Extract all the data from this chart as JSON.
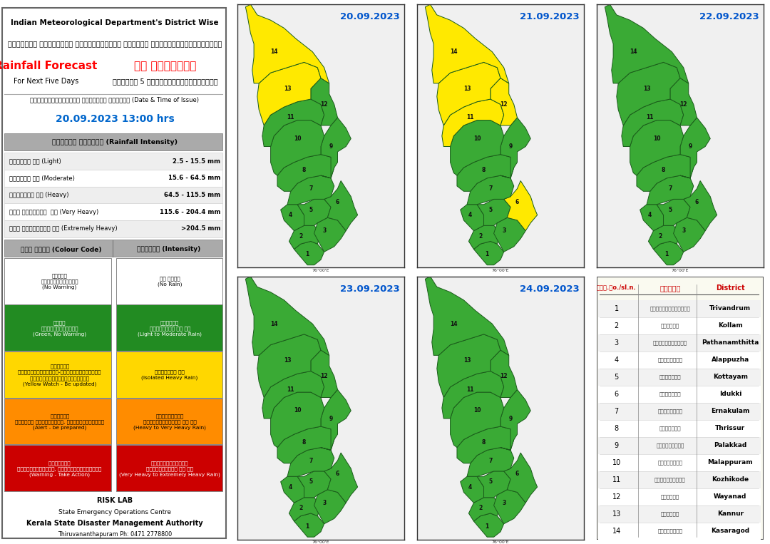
{
  "title_en": "Indian Meteorological Department's District Wise",
  "title_ml": "ഇന്ത്യൻ കാലാവസ്ഥ വകുപ്പിന്റെ ജില്ലാ അടിസ്ഥാനത്തിലുള്ള",
  "rainfall_en": "Rainfall Forecast",
  "rainfall_ml": "മഴ പ്രവചനം",
  "days_en": "For Next Five Days",
  "days_ml": "അടുത്ത 5 ദിവസത്തേക്കുള്ളത്",
  "issue_label": "പുറപ്പെടുവിച്ച ദിവസവും സമയവും (Date & Time of Issue)",
  "issue_date": "20.09.2023 13:00 hrs",
  "intensity_header_ml": "മഴയുടെ തീവ്രത (Rainfall Intensity)",
  "intensity_rows": [
    [
      "ചാറ്റൽ മഴ (Light)",
      "2.5 - 15.5 mm"
    ],
    [
      "മിതമായ മഴ (Moderate)",
      "15.6 - 64.5 mm"
    ],
    [
      "ശക്തമായ മഴ (Heavy)",
      "64.5 - 115.5 mm"
    ],
    [
      "അതി ശക്തമായ  മഴ (Very Heavy)",
      "115.6 - 204.4 mm"
    ],
    [
      "അതി തീവ്രമായ മഴ (Extremely Heavy)",
      ">204.5 mm"
    ]
  ],
  "colour_code_ml": "കളർ കോഡ് (Colour Code)",
  "intensity_col_ml": "തീവ്രത (Intensity)",
  "colour_rows": [
    [
      "white",
      "വെള്ള\nമുന്നറിയില്ല\n(No Warning)",
      "മഴ ഇല്ല\n(No Rain)"
    ],
    [
      "#228B22",
      "പച്ച\nമുന്നറിയില്ല\n(Green, No Warning)",
      "നേരിതോ\nമിതമായതോ ആയ മഴ\n(Light to Moderate Rain)"
    ],
    [
      "#FFD700",
      "മഞ്ഞള്‍\nനിരീക്ഷിക്കുക-മുന്നറിയിപ്‍പ്\nപുതുക്കികാണിച്‍ചുക്ക\n(Yellow Watch - Be updated)",
      "ശക്തമായ മഴ\n(Isolated Heavy Rain)"
    ],
    [
      "#FF8C00",
      "ഓറഞ്ച്‍\nജാഗ്രത പാലിക്കുക, കരുതിരിക്കുക\n(Alert - be prepared)",
      "ശക്തമായതോ\nഅതിശക്തമായതോ ആയ മഴ\n(Heavy to Very Heavy Rain)"
    ],
    [
      "#CC0000",
      "ചുവപ്പ്‍\nകണ്ണറിയിച്‍ച്, പ്രവർത്തിക്കുക\n(Warning - Take Action)",
      "അതിശക്തമായതോ\nതീവ്രമായതോ ആയ മഴ\n(Very Heavy to Extremely Heavy Rain)"
    ]
  ],
  "risk_lab": "RISK LAB",
  "ksoc": "State Emergency Operations Centre",
  "ksda": "Kerala State Disaster Management Authority",
  "thiruvananthapuram": "Thiruvananthapuram Ph: 0471 2778800",
  "dates": [
    "20.09.2023",
    "21.09.2023",
    "22.09.2023",
    "23.09.2023",
    "24.09.2023"
  ],
  "districts_ml": [
    "തിരുവനന്തപുരം",
    "കൊല്ലം",
    "പത്തനംതിട്ട",
    "ആലപ്പുഴാ",
    "കോട്ടയം",
    "ഇടുക്കി",
    "എറണാകുളം",
    "തൃശ്ശൂർ",
    "പാലക്കാട്",
    "മലപ്പുറം",
    "കോഴിക്കോട്",
    "വയനാട്",
    "കണ്ണൂർ",
    "കാസരഗോഡ൏"
  ],
  "districts_en": [
    "Trivandrum",
    "Kollam",
    "Pathanamthitta",
    "Alappuzha",
    "Kottayam",
    "Idukki",
    "Ernakulam",
    "Thrissur",
    "Palakkad",
    "Malappuram",
    "Kozhikode",
    "Wayanad",
    "Kannur",
    "Kasaragod"
  ],
  "sl_n_ml": "ക്ര.നo./sl.n.",
  "jilla_ml": "ജില്ല",
  "map_yellow_day1": [
    14,
    13
  ],
  "map_yellow_day2": [
    14,
    13,
    11,
    12,
    6
  ],
  "map_yellow_day3": [],
  "map_yellow_day4": [],
  "map_yellow_day5": []
}
